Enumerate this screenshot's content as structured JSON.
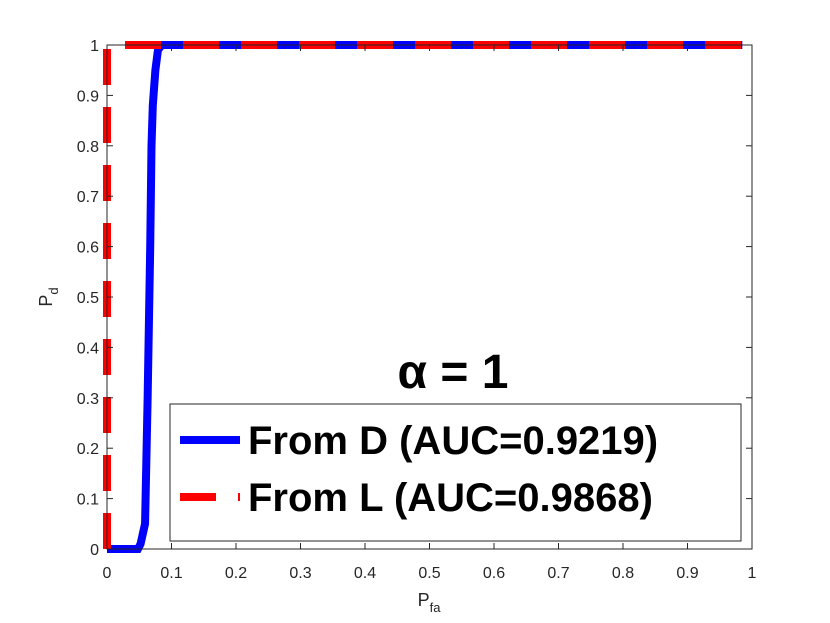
{
  "chart_data": {
    "type": "line",
    "xlabel": "P",
    "xlabel_subscript": "fa",
    "ylabel": "P",
    "ylabel_subscript": "d",
    "annotation": "α = 1",
    "xlim": [
      0,
      1
    ],
    "ylim": [
      0,
      1
    ],
    "xticks": [
      0,
      0.1,
      0.2,
      0.3,
      0.4,
      0.5,
      0.6,
      0.7,
      0.8,
      0.9,
      1
    ],
    "yticks": [
      0,
      0.1,
      0.2,
      0.3,
      0.4,
      0.5,
      0.6,
      0.7,
      0.8,
      0.9,
      1
    ],
    "grid": false,
    "legend": "lower right",
    "series": [
      {
        "name": "From D (AUC=0.9219)",
        "color": "#0000ff",
        "dashed": false,
        "x": [
          0,
          0.048,
          0.052,
          0.059,
          0.063,
          0.067,
          0.069,
          0.071,
          0.075,
          0.079,
          0.085,
          0.985
        ],
        "values": [
          0,
          0,
          0.01,
          0.05,
          0.3,
          0.6,
          0.8,
          0.88,
          0.95,
          0.99,
          1,
          1
        ]
      },
      {
        "name": "From L (AUC=0.9868)",
        "color": "#ff0000",
        "dashed": true,
        "x": [
          0,
          0,
          0.985
        ],
        "values": [
          0,
          1,
          1
        ]
      }
    ]
  }
}
